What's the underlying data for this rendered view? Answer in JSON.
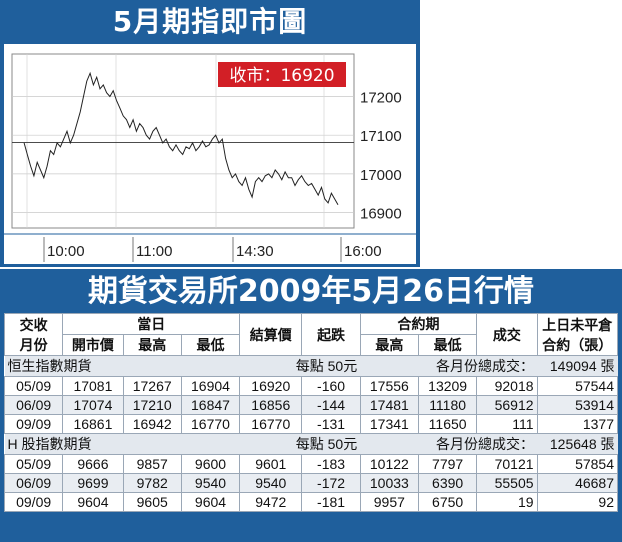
{
  "chart_title": "5月期指即市圖",
  "chart_data": {
    "type": "line",
    "close_label": "收市：16920",
    "x_ticks": [
      "10:00",
      "11:00",
      "14:30",
      "16:00"
    ],
    "y_ticks": [
      17200,
      17100,
      17000,
      16900
    ],
    "ylim": [
      16860,
      17310
    ],
    "grid": true,
    "reference_line": 17081,
    "series": [
      {
        "values": [
          17081,
          17050,
          17020,
          16995,
          17030,
          17010,
          16990,
          17020,
          17060,
          17050,
          17080,
          17070,
          17090,
          17110,
          17080,
          17100,
          17130,
          17160,
          17200,
          17240,
          17260,
          17230,
          17250,
          17220,
          17230,
          17210,
          17200,
          17215,
          17190,
          17170,
          17150,
          17140,
          17120,
          17140,
          17110,
          17130,
          17120,
          17100,
          17090,
          17110,
          17120,
          17100,
          17080,
          17090,
          17070,
          17060,
          17075,
          17060,
          17050,
          17070,
          17065,
          17080,
          17060,
          17070,
          17085,
          17070,
          17075,
          17090,
          17100,
          17080,
          17090,
          17040,
          17010,
          16990,
          17000,
          16980,
          16970,
          16990,
          16960,
          16940,
          16980,
          16990,
          16980,
          16995,
          17000,
          16990,
          17010,
          17000,
          16985,
          17005,
          16990,
          16990,
          16970,
          16985,
          16995,
          16980,
          16970,
          16975,
          16960,
          16945,
          16965,
          16935,
          16925,
          16950,
          16935,
          16920
        ]
      }
    ]
  },
  "table_title": "期貨交易所2009年5月26日行情",
  "headers": {
    "month_1": "交收",
    "month_2": "月份",
    "day": "當日",
    "open": "開市價",
    "high": "最高",
    "low": "最低",
    "settle": "結算價",
    "change": "起跌",
    "contract": "合約期",
    "c_high": "最高",
    "c_low": "最低",
    "volume": "成交",
    "oi_1": "上日未平倉",
    "oi_2": "合約（張）"
  },
  "sections": [
    {
      "name": "恒生指數期貨",
      "unit": "每點 50元",
      "total_label": "各月份總成交：",
      "total": "149094 張",
      "rows": [
        [
          "05/09",
          "17081",
          "17267",
          "16904",
          "16920",
          "-160",
          "17556",
          "13209",
          "92018",
          "57544"
        ],
        [
          "06/09",
          "17074",
          "17210",
          "16847",
          "16856",
          "-144",
          "17481",
          "11180",
          "56912",
          "53914"
        ],
        [
          "09/09",
          "16861",
          "16942",
          "16770",
          "16770",
          "-131",
          "17341",
          "11650",
          "111",
          "1377"
        ]
      ]
    },
    {
      "name": "H 股指數期貨",
      "unit": "每點 50元",
      "total_label": "各月份總成交：",
      "total": "125648 張",
      "rows": [
        [
          "05/09",
          "9666",
          "9857",
          "9600",
          "9601",
          "-183",
          "10122",
          "7797",
          "70121",
          "57854"
        ],
        [
          "06/09",
          "9699",
          "9782",
          "9540",
          "9540",
          "-172",
          "10033",
          "6390",
          "55505",
          "46687"
        ],
        [
          "09/09",
          "9604",
          "9605",
          "9604",
          "9472",
          "-181",
          "9957",
          "6750",
          "19",
          "92"
        ]
      ]
    }
  ]
}
